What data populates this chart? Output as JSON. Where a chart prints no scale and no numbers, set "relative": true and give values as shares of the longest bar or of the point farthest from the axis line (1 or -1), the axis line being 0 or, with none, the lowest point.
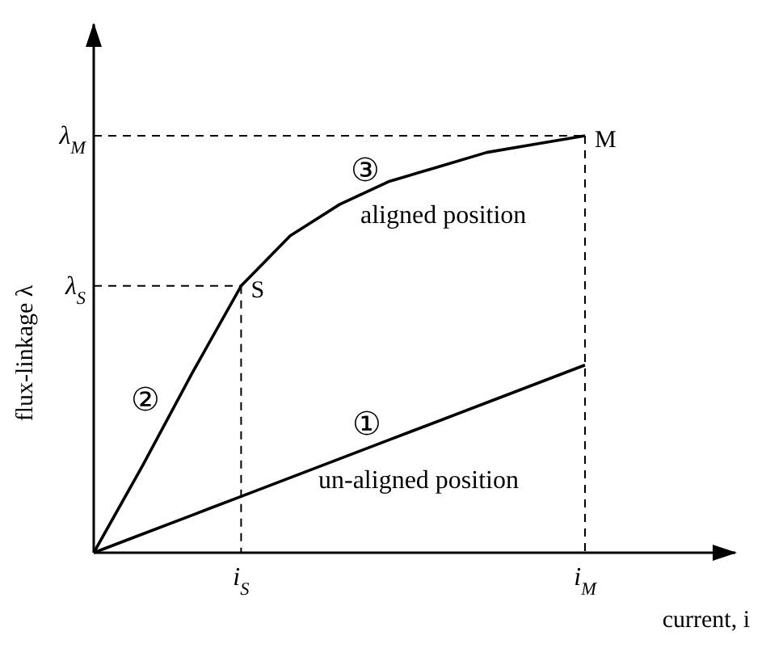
{
  "chart_data": {
    "type": "line",
    "relative": true,
    "xlabel": "current, i",
    "ylabel": "flux-linkage λ",
    "categories": [
      null,
      null,
      null,
      "i$_{S}$",
      null,
      null,
      null,
      null,
      null,
      null,
      "i$_{M}$"
    ],
    "series": [
      {
        "name": "un-aligned position",
        "color": "#000000",
        "values": [
          0,
          0.045,
          0.09,
          0.135,
          0.18,
          0.225,
          0.27,
          0.315,
          0.36,
          0.405,
          0.45
        ]
      },
      {
        "name": "aligned position",
        "color": "#000000",
        "values": [
          0,
          0.21,
          0.43,
          0.64,
          0.76,
          0.835,
          0.89,
          0.925,
          0.96,
          0.98,
          1
        ]
      }
    ],
    "ref_lines": [
      {
        "axis": "y",
        "value": 0.64,
        "label": "λ$_{S}$",
        "line_style": "dashed",
        "color": "#000000"
      },
      {
        "axis": "y",
        "value": 1,
        "label": "λ$_{M}$",
        "line_style": "dashed",
        "color": "#000000"
      }
    ],
    "annotations": [
      "①",
      "②",
      "③",
      {
        "text": "S",
        "x": "i$_{S}$",
        "y": 0.64
      },
      {
        "text": "M",
        "x": "i$_{M}$",
        "y": 1
      }
    ],
    "grid": false,
    "marker": "none",
    "line_style": "solid"
  }
}
